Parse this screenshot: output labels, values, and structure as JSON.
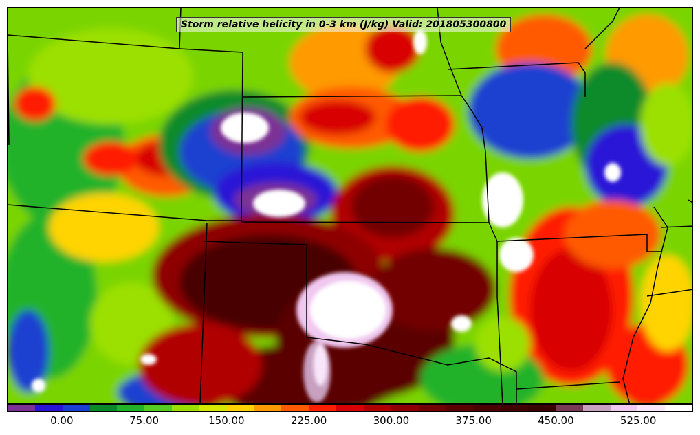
{
  "title": "Storm relative helicity in 0-3 km (J/kg) Valid: 201805300800",
  "colorbar": {
    "tick_labels": [
      "0.00",
      "75.00",
      "150.00",
      "225.00",
      "300.00",
      "375.00",
      "450.00",
      "525.00"
    ],
    "tick_values": [
      0,
      75,
      150,
      225,
      300,
      375,
      450,
      525
    ],
    "range": [
      -50,
      575
    ],
    "level_step": 25,
    "colors": [
      "#7b3294",
      "#2a12d6",
      "#1a3fd0",
      "#0a8a2a",
      "#22b22a",
      "#55cc22",
      "#9be000",
      "#d4e800",
      "#ffd400",
      "#ff9a00",
      "#ff5a00",
      "#ff1e00",
      "#d80000",
      "#b00000",
      "#8e0000",
      "#720000",
      "#5a0000",
      "#4a0000",
      "#420000",
      "#3a0000",
      "#7a3a56",
      "#c8a0c0",
      "#f0c8f0",
      "#fae6fa",
      "#ffffff"
    ]
  }
}
